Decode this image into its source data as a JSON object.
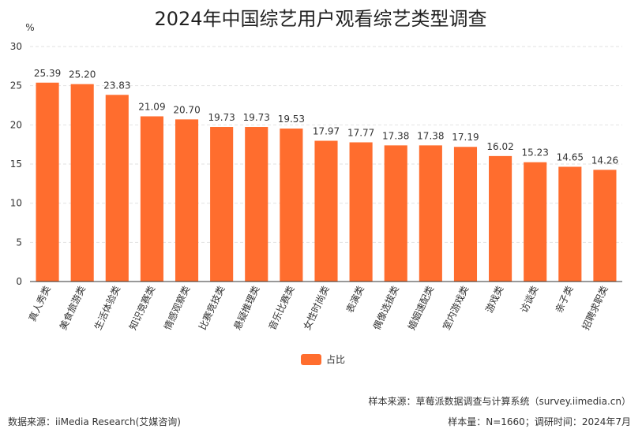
{
  "chart_data": {
    "type": "bar",
    "title": "2024年中国综艺用户观看综艺类型调查",
    "unit": "%",
    "ylim": [
      0,
      30
    ],
    "yticks": [
      0,
      5,
      10,
      15,
      20,
      25,
      30
    ],
    "categories": [
      "真人秀类",
      "美食旅游类",
      "生活体验类",
      "知识竞赛类",
      "情感观察类",
      "比赛竞技类",
      "悬疑推理类",
      "音乐比赛类",
      "女性时尚类",
      "表演类",
      "偶像选拔类",
      "婚姻速配类",
      "室内游戏类",
      "游戏类",
      "访谈类",
      "亲子类",
      "招聘求职类"
    ],
    "series": [
      {
        "name": "占比",
        "values": [
          25.39,
          25.2,
          23.83,
          21.09,
          20.7,
          19.73,
          19.73,
          19.53,
          17.97,
          17.77,
          17.38,
          17.38,
          17.19,
          16.02,
          15.23,
          14.65,
          14.26
        ],
        "labels": [
          "25.39",
          "25.20",
          "23.83",
          "21.09",
          "20.70",
          "19.73",
          "19.73",
          "19.53",
          "17.97",
          "17.77",
          "17.38",
          "17.38",
          "17.19",
          "16.02",
          "15.23",
          "14.65",
          "14.26"
        ]
      }
    ],
    "legend_position": "bottom-center",
    "grid": true,
    "colors": {
      "bar": "#FF6D2E",
      "grid": "#E2E2E2",
      "axis": "#333333",
      "text": "#333333"
    }
  },
  "footer": {
    "sample_source": "样本来源：草莓派数据调查与计算系统（survey.iimedia.cn）",
    "data_source": "数据来源：iiMedia Research(艾媒咨询)",
    "sample_info": "样本量：N=1660；调研时间：2024年7月"
  }
}
